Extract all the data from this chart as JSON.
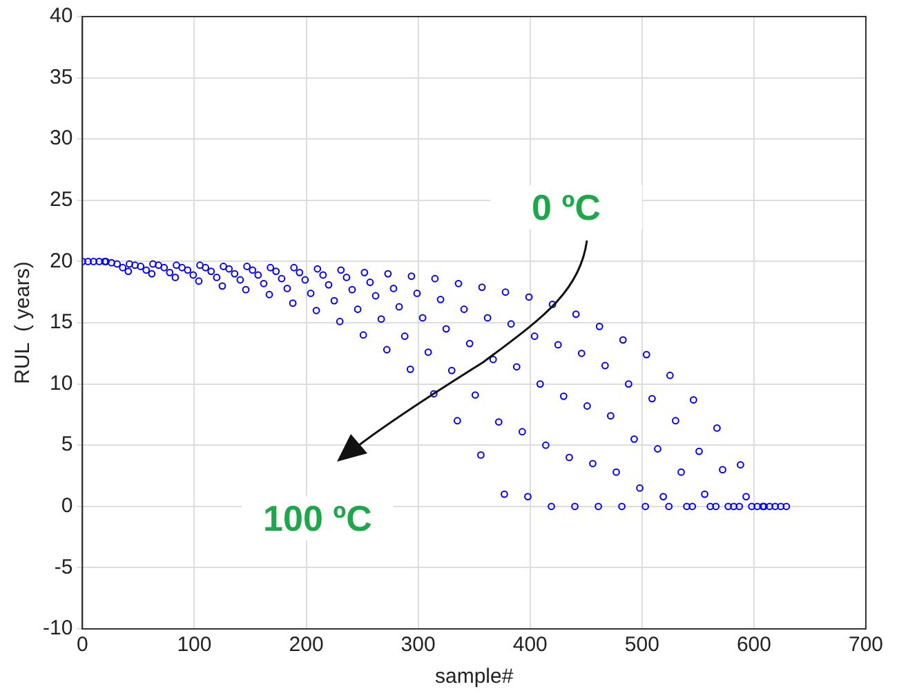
{
  "chart_data": {
    "type": "scatter",
    "xlabel": "sample#",
    "ylabel": "RUL  ( years)",
    "annotations": [
      "0 ºC",
      "100 ºC"
    ],
    "xlim": [
      0,
      700
    ],
    "xticks": [
      0,
      100,
      200,
      300,
      400,
      500,
      600,
      700
    ],
    "ylim": [
      -10,
      40
    ],
    "yticks": [
      -10,
      -5,
      0,
      5,
      10,
      15,
      20,
      25,
      30,
      35,
      40
    ],
    "grid": true,
    "legend": false,
    "marker": "circle",
    "series": [
      {
        "color": "#0000ff",
        "x": [
          0,
          5,
          10,
          15,
          20,
          21,
          26,
          31,
          36,
          41,
          42,
          47,
          52,
          57,
          62,
          63,
          68,
          73,
          78,
          83,
          84,
          89,
          94,
          99,
          104,
          105,
          110,
          115,
          120,
          125,
          126,
          131,
          136,
          141,
          146,
          147,
          152,
          157,
          162,
          167,
          168,
          173,
          178,
          183,
          188,
          189,
          194,
          199,
          204,
          209,
          210,
          215,
          220,
          225,
          230,
          231,
          236,
          241,
          246,
          251,
          252,
          257,
          262,
          267,
          272,
          273,
          278,
          283,
          288,
          293,
          294,
          299,
          304,
          309,
          314,
          315,
          320,
          325,
          330,
          335,
          336,
          341,
          346,
          351,
          356,
          357,
          362,
          367,
          372,
          377,
          378,
          383,
          388,
          393,
          398,
          399,
          404,
          409,
          414,
          419,
          420,
          425,
          430,
          435,
          440,
          441,
          446,
          451,
          456,
          461,
          462,
          467,
          472,
          477,
          482,
          483,
          488,
          493,
          498,
          503,
          504,
          509,
          514,
          519,
          524,
          525,
          530,
          535,
          540,
          545,
          546,
          551,
          556,
          561,
          566,
          567,
          572,
          577,
          582,
          587,
          588,
          593,
          598,
          603,
          608,
          609,
          614,
          619,
          624,
          629
        ],
        "values": [
          20,
          20,
          20,
          20,
          20,
          20,
          19.9,
          19.8,
          19.5,
          19.2,
          19.8,
          19.7,
          19.6,
          19.3,
          19.0,
          19.8,
          19.7,
          19.5,
          19.1,
          18.7,
          19.7,
          19.5,
          19.3,
          18.9,
          18.4,
          19.7,
          19.5,
          19.2,
          18.7,
          18.0,
          19.6,
          19.4,
          19.0,
          18.5,
          17.7,
          19.6,
          19.3,
          18.9,
          18.2,
          17.3,
          19.5,
          19.2,
          18.6,
          17.8,
          16.6,
          19.5,
          19.1,
          18.5,
          17.4,
          16.0,
          19.4,
          18.9,
          18.1,
          16.8,
          15.1,
          19.3,
          18.7,
          17.7,
          16.1,
          14.0,
          19.1,
          18.3,
          17.2,
          15.3,
          12.8,
          19.0,
          17.8,
          16.3,
          13.9,
          11.2,
          18.8,
          17.4,
          15.4,
          12.6,
          9.2,
          18.6,
          16.9,
          14.5,
          11.1,
          7.0,
          18.2,
          16.1,
          13.3,
          9.1,
          4.2,
          17.9,
          15.4,
          12.0,
          6.9,
          1.0,
          17.5,
          14.9,
          11.4,
          6.1,
          0.8,
          17.1,
          13.9,
          10.0,
          5.0,
          0,
          16.5,
          13.2,
          9.0,
          4.0,
          0,
          15.7,
          12.5,
          8.2,
          3.5,
          0,
          14.7,
          11.5,
          7.4,
          2.8,
          0,
          13.6,
          10.0,
          5.5,
          1.5,
          0,
          12.4,
          8.8,
          4.7,
          0.8,
          0,
          10.7,
          7.0,
          2.8,
          0,
          0,
          8.7,
          4.5,
          1.0,
          0,
          0,
          6.4,
          3.0,
          0,
          0,
          0,
          3.4,
          0.8,
          0,
          0,
          0,
          0,
          0,
          0,
          0,
          0
        ]
      }
    ]
  }
}
